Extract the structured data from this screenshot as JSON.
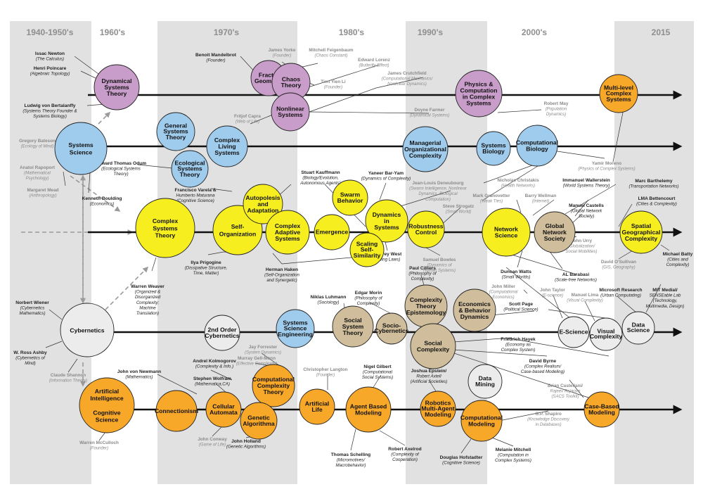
{
  "eras": [
    "1940-1950's",
    "1960's",
    "1970's",
    "1980's",
    "1990's",
    "2000's",
    "2015"
  ],
  "colors": {
    "purple": "#c99dca",
    "blue": "#9fcbed",
    "yellow": "#f6ee1f",
    "white": "#ececec",
    "tan": "#cfbd9b",
    "orange": "#f8a829",
    "band": "#e1e1e1",
    "line": "#333333",
    "dashed": "#9a9a9a"
  },
  "nodes": [
    {
      "id": "dynamical",
      "label": [
        "Dynamical",
        "Systems",
        "Theory"
      ],
      "color": "purple"
    },
    {
      "id": "fractal",
      "label": [
        "Fractal",
        "Geometry"
      ],
      "color": "purple"
    },
    {
      "id": "chaos",
      "label": [
        "Chaos",
        "Theory"
      ],
      "color": "purple"
    },
    {
      "id": "nonlinear",
      "label": [
        "Nonlinear",
        "Systems"
      ],
      "color": "purple"
    },
    {
      "id": "physics",
      "label": [
        "Physics &",
        "Computation",
        "in Complex",
        "Systems"
      ],
      "color": "purple"
    },
    {
      "id": "multilevel",
      "label": [
        "Multi-level",
        "Complex",
        "Systems"
      ],
      "color": "orange"
    },
    {
      "id": "systems-science",
      "label": [
        "Systems",
        "Science"
      ],
      "color": "blue"
    },
    {
      "id": "general-systems",
      "label": [
        "General",
        "Systems",
        "Theory"
      ],
      "color": "blue"
    },
    {
      "id": "ecological",
      "label": [
        "Ecological",
        "Systems",
        "Theory"
      ],
      "color": "blue"
    },
    {
      "id": "complex-living",
      "label": [
        "Complex",
        "Living",
        "Systems"
      ],
      "color": "blue"
    },
    {
      "id": "managerial",
      "label": [
        "Managerial",
        "Organizational",
        "Complexity"
      ],
      "color": "blue"
    },
    {
      "id": "systems-biology",
      "label": [
        "Systems",
        "Biology"
      ],
      "color": "blue"
    },
    {
      "id": "comp-biology",
      "label": [
        "Computational",
        "Biology"
      ],
      "color": "blue"
    },
    {
      "id": "complex-systems-theory",
      "label": [
        "Complex",
        "Systems",
        "Theory"
      ],
      "color": "yellow"
    },
    {
      "id": "self-org",
      "label": [
        "Self-",
        "Organization"
      ],
      "color": "yellow"
    },
    {
      "id": "autopoiesis",
      "label": [
        "Autopolesis",
        "and",
        "Adaptation"
      ],
      "color": "yellow"
    },
    {
      "id": "cas",
      "label": [
        "Complex",
        "Adaptive",
        "Systems"
      ],
      "color": "yellow"
    },
    {
      "id": "emergence",
      "label": [
        "Emergence"
      ],
      "color": "yellow"
    },
    {
      "id": "swarm",
      "label": [
        "Swarm",
        "Behavior"
      ],
      "color": "yellow"
    },
    {
      "id": "dynamics-in-systems",
      "label": [
        "Dynamics",
        "in",
        "Systems"
      ],
      "color": "yellow"
    },
    {
      "id": "robustness",
      "label": [
        "Robustness",
        "Control"
      ],
      "color": "yellow"
    },
    {
      "id": "scaling",
      "label": [
        "Scaling",
        "Self-",
        "Similarity"
      ],
      "color": "yellow"
    },
    {
      "id": "network-science",
      "label": [
        "Network",
        "Science"
      ],
      "color": "yellow"
    },
    {
      "id": "global-network",
      "label": [
        "Global",
        "Network",
        "Society"
      ],
      "color": "tan"
    },
    {
      "id": "spatial",
      "label": [
        "Spatial",
        "Geographical",
        "Complexity"
      ],
      "color": "yellow"
    },
    {
      "id": "cybernetics",
      "label": [
        "Cybernetics"
      ],
      "color": "white"
    },
    {
      "id": "second-order",
      "label": [
        "2nd Order",
        "Cybernetics"
      ],
      "color": "white"
    },
    {
      "id": "sse",
      "label": [
        "Systems",
        "Science",
        "Engineering"
      ],
      "color": "blue"
    },
    {
      "id": "social-system",
      "label": [
        "Social",
        "System",
        "Theory"
      ],
      "color": "tan"
    },
    {
      "id": "socio-cyb",
      "label": [
        "Socio-",
        "Cybernetics"
      ],
      "color": "tan"
    },
    {
      "id": "ct-epistemology",
      "label": [
        "Complexity",
        "Theory",
        "Epistemology"
      ],
      "color": "tan"
    },
    {
      "id": "econ",
      "label": [
        "Economics",
        "& Behavior",
        "Dynamics"
      ],
      "color": "tan"
    },
    {
      "id": "social-complexity",
      "label": [
        "Social",
        "Complexity"
      ],
      "color": "tan"
    },
    {
      "id": "e-science",
      "label": [
        "E-Science"
      ],
      "color": "white"
    },
    {
      "id": "visual-complexity",
      "label": [
        "Visual",
        "Complexity"
      ],
      "color": "white"
    },
    {
      "id": "data-science",
      "label": [
        "Data",
        "Science"
      ],
      "color": "white"
    },
    {
      "id": "ai",
      "label": [
        "Artificial",
        "Intelligence",
        "",
        "Cognitive",
        "Science"
      ],
      "color": "orange"
    },
    {
      "id": "connectionism",
      "label": [
        "Connectionism"
      ],
      "color": "orange"
    },
    {
      "id": "cellular-automata",
      "label": [
        "Cellular",
        "Automata"
      ],
      "color": "orange"
    },
    {
      "id": "cct",
      "label": [
        "Computational",
        "Complexity",
        "Theory"
      ],
      "color": "orange"
    },
    {
      "id": "genetic",
      "label": [
        "Genetic",
        "Algorithma"
      ],
      "color": "orange"
    },
    {
      "id": "artificial-life",
      "label": [
        "Artificial",
        "Life"
      ],
      "color": "orange"
    },
    {
      "id": "abm",
      "label": [
        "Agent Based",
        "Modeling"
      ],
      "color": "orange"
    },
    {
      "id": "robotics",
      "label": [
        "Robotics",
        "Multi-Agent",
        "Modeling"
      ],
      "color": "orange"
    },
    {
      "id": "data-mining",
      "label": [
        "Data",
        "Mining"
      ],
      "color": "white"
    },
    {
      "id": "comp-modeling",
      "label": [
        "Computational",
        "Modeling"
      ],
      "color": "orange"
    },
    {
      "id": "case-based",
      "label": [
        "Case-Based",
        "Modeling"
      ],
      "color": "orange"
    }
  ],
  "people": [
    {
      "id": "newton",
      "lines": [
        "Issac Newton",
        "(The Calculus)"
      ],
      "grey": false
    },
    {
      "id": "poincare",
      "lines": [
        "Henri Poincare",
        "(Algebraic Topology)"
      ],
      "grey": false
    },
    {
      "id": "bertalanffy",
      "lines": [
        "Ludwig von Bertalanffy",
        "(Systems Theory Founder &",
        "Systems Biology)"
      ],
      "grey": false
    },
    {
      "id": "bateson",
      "lines": [
        "Gregory Bateson",
        "(Ecology of Mind)"
      ],
      "grey": true
    },
    {
      "id": "rapoport",
      "lines": [
        "Anatol Rapoport",
        "(Mathematical",
        "Psychology)"
      ],
      "grey": true
    },
    {
      "id": "mead",
      "lines": [
        "Margaret Mead",
        "(Anthropology)"
      ],
      "grey": true
    },
    {
      "id": "boulding",
      "lines": [
        "Kenneth Boulding",
        "(Economics)"
      ],
      "grey": false
    },
    {
      "id": "mandelbrot",
      "lines": [
        "Benoit Mandelbrot",
        "(Founder)"
      ],
      "grey": false
    },
    {
      "id": "yorke",
      "lines": [
        "James Yorke",
        "(Founder)"
      ],
      "grey": true
    },
    {
      "id": "feigenbaum",
      "lines": [
        "Mitchell Feigenbaum",
        "(Chaos Constant)"
      ],
      "grey": true
    },
    {
      "id": "lorenz",
      "lines": [
        "Edward Lorenz",
        "(Butterfly Effect)"
      ],
      "grey": true
    },
    {
      "id": "tienyienli",
      "lines": [
        "Tien Yien Li",
        "(Founder)"
      ],
      "grey": true
    },
    {
      "id": "capra",
      "lines": [
        "Fritjof Capra",
        "(Web of Life)"
      ],
      "grey": true
    },
    {
      "id": "crutchfield",
      "lines": [
        "James Crutchfield",
        "(Computational Mechanics/",
        "Nonlinear Dynamics)"
      ],
      "grey": true
    },
    {
      "id": "farmer",
      "lines": [
        "Doyne Farmer",
        "(Dynamical Systems)"
      ],
      "grey": true
    },
    {
      "id": "may",
      "lines": [
        "Robert May",
        "(Population",
        "Dynamics)"
      ],
      "grey": true
    },
    {
      "id": "moreno",
      "lines": [
        "Yamir Moreno",
        "(Physics of Complex Systems)"
      ],
      "grey": true
    },
    {
      "id": "odum",
      "lines": [
        "Howard Thomas Odum",
        "(Ecological Systems",
        "Theory)"
      ],
      "grey": false
    },
    {
      "id": "varela",
      "lines": [
        "Francisco Varela &",
        "Humberto Maturana",
        "(Cognitive Science)"
      ],
      "grey": false
    },
    {
      "id": "kauffmann",
      "lines": [
        "Stuart Kauffmann",
        "(Biology/Evolution,",
        "Autonomous Agents)"
      ],
      "grey": false
    },
    {
      "id": "baryam",
      "lines": [
        "Yaneer Bar-Yam",
        "(Dynamics of Complexity)"
      ],
      "grey": false
    },
    {
      "id": "deneubourg",
      "lines": [
        "Jean-Louis Deneubourg",
        "(Swarm Intelligence, Nonlinear",
        "Dynamics, Biological",
        "Computation)"
      ],
      "grey": true
    },
    {
      "id": "christakis",
      "lines": [
        "Nicholas Christakis",
        "(Health Networks)"
      ],
      "grey": true
    },
    {
      "id": "wallerstein",
      "lines": [
        "Immanuel Wallerstein",
        "(World Systems Theory)"
      ],
      "grey": false
    },
    {
      "id": "granovetter",
      "lines": [
        "Mark Granovetter",
        "(Weak Ties)"
      ],
      "grey": true
    },
    {
      "id": "wellman",
      "lines": [
        "Barry Wellman",
        "(Internet)"
      ],
      "grey": true
    },
    {
      "id": "barthelemy",
      "lines": [
        "Marc Barthelemy",
        "(Transportation Networks)"
      ],
      "grey": false
    },
    {
      "id": "strogatz",
      "lines": [
        "Steve Strogatz",
        "(Small World)"
      ],
      "grey": true
    },
    {
      "id": "castells",
      "lines": [
        "Manuel Castells",
        "(Global Network",
        "Society)"
      ],
      "grey": false
    },
    {
      "id": "bettencourt",
      "lines": [
        "LMA Bettencourt",
        "(Cities & Complexity)"
      ],
      "grey": false
    },
    {
      "id": "urry",
      "lines": [
        "John Urry",
        "(Globalization/",
        "Social Mobilities)"
      ],
      "grey": true
    },
    {
      "id": "batty",
      "lines": [
        "Michael Batty",
        "(Cities and",
        "Complexity)"
      ],
      "grey": false
    },
    {
      "id": "osullivan",
      "lines": [
        "David O'Sullivan",
        "(GIS, Geography)"
      ],
      "grey": true
    },
    {
      "id": "barabasi",
      "lines": [
        "AL Barabasi",
        "(Scale-free Networks)"
      ],
      "grey": false
    },
    {
      "id": "watts",
      "lines": [
        "Duncan Watts",
        "(Small Worlds)"
      ],
      "grey": false
    },
    {
      "id": "prigogine",
      "lines": [
        "Ilya Prigogine",
        "(Dissipative Structure,",
        "Time, Matter)"
      ],
      "grey": false
    },
    {
      "id": "haken",
      "lines": [
        "Herman Haken",
        "(Self-Organization",
        "and Synergetic)"
      ],
      "grey": false
    },
    {
      "id": "west",
      "lines": [
        "Geoffrey West",
        "(Scaling Laws)"
      ],
      "grey": false
    },
    {
      "id": "bowles",
      "lines": [
        "Samuel Bowles",
        "(Dynamics of",
        "Human Systems)"
      ],
      "grey": true
    },
    {
      "id": "cilliers",
      "lines": [
        "Paul Cilliers",
        "(Philosophy of",
        "Complexity)"
      ],
      "grey": false
    },
    {
      "id": "weaver",
      "lines": [
        "Warren Weaver",
        "(Organized &",
        "Disorganized",
        "Complexity;",
        "Machine",
        "Translation)"
      ],
      "grey": false
    },
    {
      "id": "wiener",
      "lines": [
        "Norbert Wiener",
        "(Cybernetics",
        "Mathematics)"
      ],
      "grey": false
    },
    {
      "id": "ashby",
      "lines": [
        "W. Ross Ashby",
        "(Cybernetics of",
        "Mind)"
      ],
      "grey": false
    },
    {
      "id": "shannon",
      "lines": [
        "Claude Shannon",
        "(Information Theory)"
      ],
      "grey": true
    },
    {
      "id": "luhmann",
      "lines": [
        "Niklas Luhmann",
        "(Sociology)"
      ],
      "grey": false
    },
    {
      "id": "morin",
      "lines": [
        "Edgar Morin",
        "(Philosophy of",
        "Complexity)"
      ],
      "grey": false
    },
    {
      "id": "millerj",
      "lines": [
        "John Miller",
        "(Computational",
        "Economics)"
      ],
      "grey": true
    },
    {
      "id": "page",
      "lines": [
        "Scott Page",
        "(Political Science)"
      ],
      "grey": false
    },
    {
      "id": "taylor",
      "lines": [
        "John Taylor",
        "(E-science)"
      ],
      "grey": true
    },
    {
      "id": "lima",
      "lines": [
        "Manuel Lima",
        "(Visual Complexity)"
      ],
      "grey": true
    },
    {
      "id": "msr",
      "lines": [
        "Microsoft Research",
        "(Urban Computating)"
      ],
      "grey": false
    },
    {
      "id": "mit",
      "lines": [
        "MIT Medial/",
        "SENSEable Lab",
        "(Technology,",
        "Multimedia, Design)"
      ],
      "grey": false
    },
    {
      "id": "hayek",
      "lines": [
        "Friedrich Hayek",
        "(Economy as",
        "Complex System)"
      ],
      "grey": false
    },
    {
      "id": "byrne",
      "lines": [
        "David Byrne",
        "(Complex Realism/",
        "Case-based Modeling)"
      ],
      "grey": false
    },
    {
      "id": "castellani",
      "lines": [
        "Brian Castellani/",
        "Rajeev Rajaram",
        "(SACS Toolkit)"
      ],
      "grey": true
    },
    {
      "id": "shapiro",
      "lines": [
        "G.P. Shapiro",
        "(Knowledge Discovery",
        "in Databases)"
      ],
      "grey": true
    },
    {
      "id": "forrester",
      "lines": [
        "Jay Forrester",
        "(System Dynamics)"
      ],
      "grey": true
    },
    {
      "id": "gellmann",
      "lines": [
        "Murray Gell-Mann",
        "(Effective Complexity)"
      ],
      "grey": true
    },
    {
      "id": "kolmogorov",
      "lines": [
        "Andrel Kolmogorov",
        "(Complexity & Info.)"
      ],
      "grey": false
    },
    {
      "id": "vonneumann",
      "lines": [
        "John von Newmann",
        "(Mathematics)"
      ],
      "grey": false
    },
    {
      "id": "wolfram",
      "lines": [
        "Stephen Wolfram",
        "(Mathematica,CA)"
      ],
      "grey": false
    },
    {
      "id": "langton",
      "lines": [
        "Christopher Langton",
        "(Founder)"
      ],
      "grey": true
    },
    {
      "id": "gilbert",
      "lines": [
        "Nigel Gilbert",
        "(Computational",
        "Social Systems)"
      ],
      "grey": false
    },
    {
      "id": "epstein",
      "lines": [
        "Joshua Epstein/",
        "Robert Axtell",
        "(Artificial Societies)"
      ],
      "grey": false
    },
    {
      "id": "conway",
      "lines": [
        "John Conway",
        "(Game of Life)"
      ],
      "grey": true
    },
    {
      "id": "holland",
      "lines": [
        "John Holland",
        "(Genetic Algorithms)"
      ],
      "grey": false
    },
    {
      "id": "mcculloch",
      "lines": [
        "Warren McCulloch",
        "(Founder)"
      ],
      "grey": true
    },
    {
      "id": "schelling",
      "lines": [
        "Thomas Schelling",
        "(Micromotives/",
        "Macrobehavior)"
      ],
      "grey": false
    },
    {
      "id": "axelrod",
      "lines": [
        "Robert Axelrod",
        "(Complexity of",
        "Cooperation)"
      ],
      "grey": false
    },
    {
      "id": "hofstadter",
      "lines": [
        "Douglas Hofstadter",
        "(Cognitive Science)"
      ],
      "grey": false
    },
    {
      "id": "mitchell",
      "lines": [
        "Melanie Mitchell",
        "(Computation in",
        "Complex Systems)"
      ],
      "grey": false
    }
  ]
}
